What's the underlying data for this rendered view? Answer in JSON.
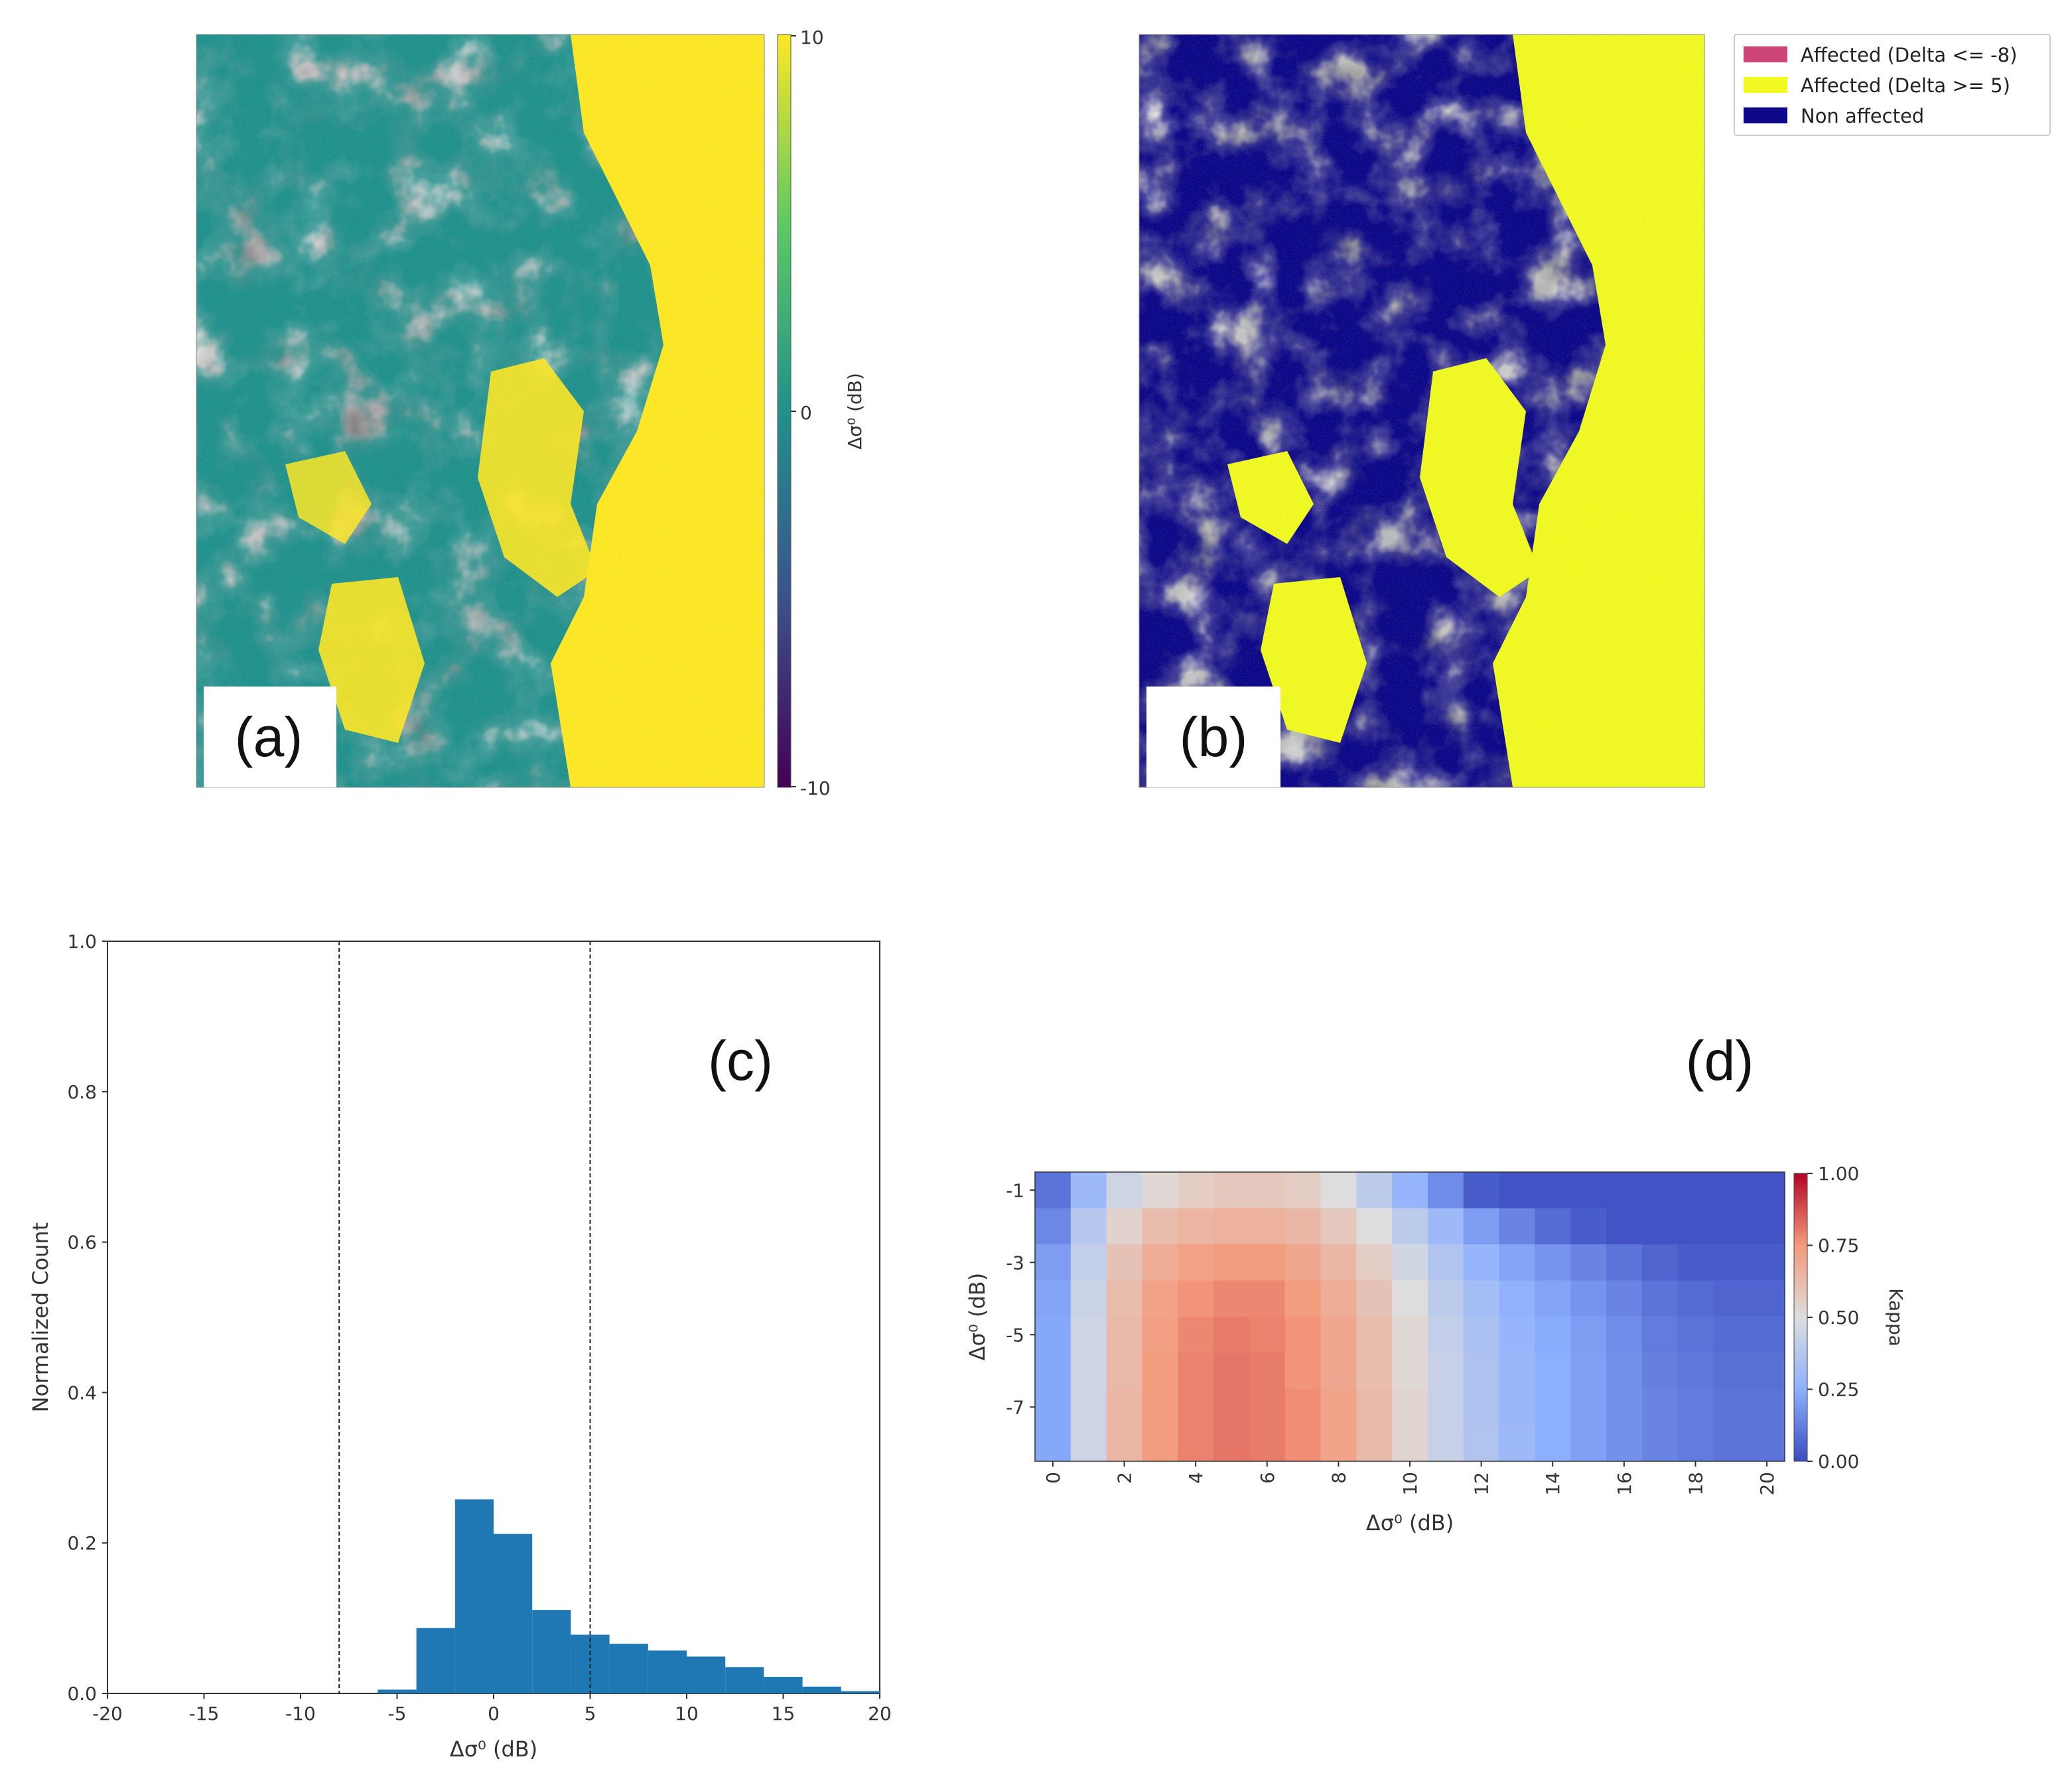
{
  "colors": {
    "viridis_dark": "#440154",
    "viridis_mid": "#21918c",
    "viridis_yellow": "#fde725",
    "plasma_blue": "#0d0887",
    "plasma_pink": "#cc4778",
    "plasma_yellow": "#f0f921",
    "hist_blue": "#1f77b4"
  },
  "panels": {
    "a": "(a)",
    "b": "(b)",
    "c": "(c)",
    "d": "(d)"
  },
  "chart_data": [
    {
      "id": "a",
      "type": "heatmap",
      "title": "",
      "colorbar": {
        "label": "Δσ⁰ (dB)",
        "ticks": [
          "10",
          "0",
          "-10"
        ],
        "range": [
          -10,
          10
        ],
        "colormap": "viridis"
      }
    },
    {
      "id": "b",
      "type": "heatmap",
      "title": "",
      "legend": {
        "position": "top-right",
        "entries": [
          {
            "label": "Affected (Delta <= -8)",
            "color": "#cc4778"
          },
          {
            "label": "Affected (Delta >= 5)",
            "color": "#f0f921"
          },
          {
            "label": "Non affected",
            "color": "#0d0887"
          }
        ]
      }
    },
    {
      "id": "c",
      "type": "bar",
      "title": "",
      "xlabel": "Δσ⁰ (dB)",
      "ylabel": "Normalized Count",
      "xlim": [
        -20,
        20
      ],
      "ylim": [
        0,
        1.0
      ],
      "xticks": [
        "-20",
        "-15",
        "-10",
        "-5",
        "0",
        "5",
        "10",
        "15",
        "20"
      ],
      "yticks": [
        "0.0",
        "0.2",
        "0.4",
        "0.6",
        "0.8",
        "1.0"
      ],
      "bin_edges": [
        -6,
        -4,
        -2,
        0,
        2,
        4,
        6,
        8,
        10,
        12,
        14,
        16,
        18,
        20
      ],
      "values": [
        0.005,
        0.087,
        0.258,
        0.212,
        0.111,
        0.078,
        0.066,
        0.057,
        0.049,
        0.035,
        0.022,
        0.009,
        0.003
      ],
      "vlines": [
        -8,
        5
      ]
    },
    {
      "id": "d",
      "type": "heatmap",
      "title": "",
      "xlabel": "Δσ⁰ (dB)",
      "ylabel": "Δσ⁰ (dB)",
      "x": [
        0,
        1,
        2,
        3,
        4,
        5,
        6,
        7,
        8,
        9,
        10,
        11,
        12,
        13,
        14,
        15,
        16,
        17,
        18,
        19,
        20
      ],
      "y": [
        -1,
        -2,
        -3,
        -4,
        -5,
        -6,
        -7,
        -8
      ],
      "xticks": [
        "0",
        "2",
        "4",
        "6",
        "8",
        "10",
        "12",
        "14",
        "16",
        "18",
        "20"
      ],
      "yticks": [
        "-1",
        "-3",
        "-5",
        "-7"
      ],
      "colorbar": {
        "label": "Kappa",
        "ticks": [
          "1.00",
          "0.75",
          "0.50",
          "0.25",
          "0.00"
        ],
        "range": [
          0,
          1
        ],
        "colormap": "coolwarm"
      },
      "values": [
        [
          0.1,
          0.3,
          0.45,
          0.52,
          0.56,
          0.58,
          0.58,
          0.56,
          0.5,
          0.4,
          0.28,
          0.16,
          0.04,
          0.02,
          0.02,
          0.02,
          0.02,
          0.02,
          0.02,
          0.02,
          0.02
        ],
        [
          0.15,
          0.38,
          0.54,
          0.62,
          0.65,
          0.66,
          0.66,
          0.64,
          0.58,
          0.5,
          0.4,
          0.3,
          0.2,
          0.14,
          0.08,
          0.04,
          0.02,
          0.02,
          0.02,
          0.02,
          0.02
        ],
        [
          0.2,
          0.42,
          0.6,
          0.68,
          0.72,
          0.74,
          0.74,
          0.7,
          0.64,
          0.56,
          0.46,
          0.36,
          0.28,
          0.22,
          0.18,
          0.14,
          0.1,
          0.06,
          0.04,
          0.04,
          0.04
        ],
        [
          0.22,
          0.44,
          0.62,
          0.72,
          0.76,
          0.78,
          0.78,
          0.74,
          0.68,
          0.6,
          0.5,
          0.4,
          0.32,
          0.26,
          0.22,
          0.18,
          0.14,
          0.1,
          0.08,
          0.06,
          0.06
        ],
        [
          0.23,
          0.45,
          0.63,
          0.73,
          0.78,
          0.8,
          0.79,
          0.76,
          0.7,
          0.62,
          0.52,
          0.42,
          0.34,
          0.28,
          0.24,
          0.2,
          0.16,
          0.12,
          0.1,
          0.08,
          0.08
        ],
        [
          0.23,
          0.45,
          0.63,
          0.74,
          0.79,
          0.81,
          0.8,
          0.76,
          0.7,
          0.62,
          0.52,
          0.43,
          0.35,
          0.29,
          0.25,
          0.21,
          0.17,
          0.13,
          0.11,
          0.09,
          0.09
        ],
        [
          0.23,
          0.45,
          0.64,
          0.74,
          0.79,
          0.81,
          0.8,
          0.77,
          0.71,
          0.63,
          0.53,
          0.43,
          0.35,
          0.29,
          0.25,
          0.21,
          0.17,
          0.14,
          0.12,
          0.1,
          0.1
        ],
        [
          0.23,
          0.45,
          0.64,
          0.74,
          0.79,
          0.81,
          0.8,
          0.77,
          0.71,
          0.63,
          0.53,
          0.43,
          0.36,
          0.3,
          0.25,
          0.21,
          0.17,
          0.14,
          0.12,
          0.1,
          0.1
        ]
      ]
    }
  ]
}
